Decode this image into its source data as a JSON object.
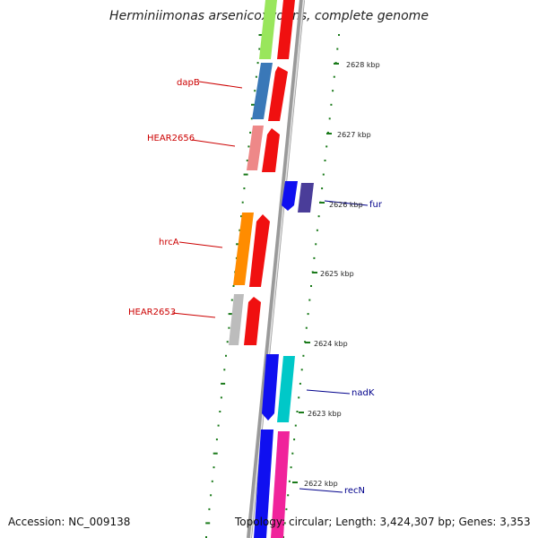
{
  "title": "Herminiimonas arsenicoxydans, complete genome",
  "accession": "Accession: NC_009138",
  "topology": "Topology: circular; Length: 3,424,307 bp; Genes: 3,353",
  "colors": {
    "backbone": "#a0a0a0",
    "tick": "#1a7a1a",
    "forward_label": "#cc0000",
    "reverse_label": "#00008b"
  },
  "scale": [
    {
      "label": "2628 kbp"
    },
    {
      "label": "2627 kbp"
    },
    {
      "label": "2626 kbp"
    },
    {
      "label": "2625 kbp"
    },
    {
      "label": "2624 kbp"
    },
    {
      "label": "2623 kbp"
    },
    {
      "label": "2622 kbp"
    }
  ],
  "gene_labels": [
    {
      "text": "dapB",
      "strand": "forward"
    },
    {
      "text": "HEAR2656",
      "strand": "forward"
    },
    {
      "text": "fur",
      "strand": "reverse"
    },
    {
      "text": "hrcA",
      "strand": "forward"
    },
    {
      "text": "HEAR2653",
      "strand": "forward"
    },
    {
      "text": "nadK",
      "strand": "reverse"
    },
    {
      "text": "recN",
      "strand": "reverse"
    }
  ]
}
